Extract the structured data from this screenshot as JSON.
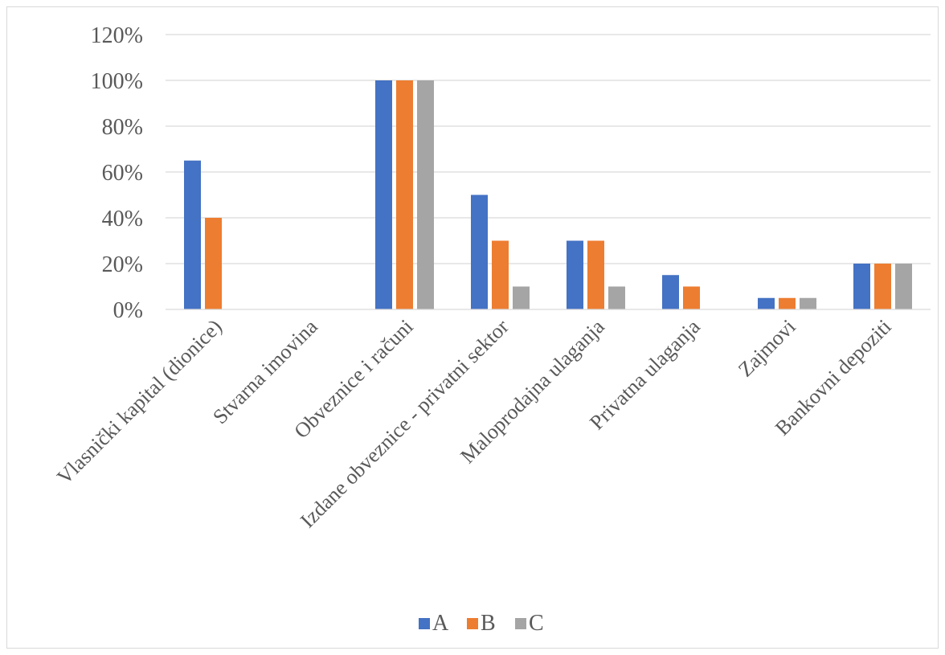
{
  "chart_data": {
    "type": "bar",
    "title": "",
    "xlabel": "",
    "ylabel": "",
    "ylim": [
      0,
      120
    ],
    "yticks": [
      0,
      20,
      40,
      60,
      80,
      100,
      120
    ],
    "ytick_labels": [
      "0%",
      "20%",
      "40%",
      "60%",
      "80%",
      "100%",
      "120%"
    ],
    "categories": [
      "Vlasnički kapital (dionice)",
      "Stvarna imovina",
      "Obveznice i računi",
      "Izdane obveznice - privatni sektor",
      "Maloprodajna ulaganja",
      "Privatna ulaganja",
      "Zajmovi",
      "Bankovni depoziti"
    ],
    "series": [
      {
        "name": "A",
        "color": "#4472c4",
        "values": [
          65,
          0,
          100,
          50,
          30,
          15,
          5,
          20
        ]
      },
      {
        "name": "B",
        "color": "#ed7d31",
        "values": [
          40,
          0,
          100,
          30,
          30,
          10,
          5,
          20
        ]
      },
      {
        "name": "C",
        "color": "#a5a5a5",
        "values": [
          0,
          0,
          100,
          10,
          10,
          0,
          5,
          20
        ]
      }
    ],
    "grid": true,
    "legend_position": "bottom"
  }
}
